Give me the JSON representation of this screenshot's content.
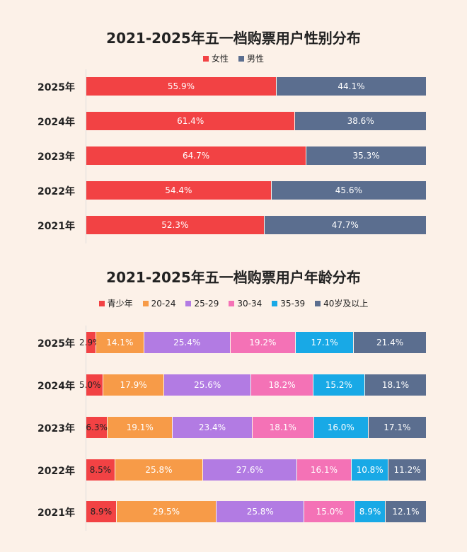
{
  "chart_data": [
    {
      "type": "bar",
      "stacked": true,
      "orientation": "horizontal",
      "title": "2021-2025年五一档购票用户性别分布",
      "categories": [
        "2025年",
        "2024年",
        "2023年",
        "2022年",
        "2021年"
      ],
      "legend_position": "top",
      "series": [
        {
          "name": "女性",
          "color": "#f24244",
          "values": [
            55.9,
            61.4,
            64.7,
            54.4,
            52.3
          ]
        },
        {
          "name": "男性",
          "color": "#5b6e8f",
          "values": [
            44.1,
            38.6,
            35.3,
            45.6,
            47.7
          ]
        }
      ]
    },
    {
      "type": "bar",
      "stacked": true,
      "orientation": "horizontal",
      "title": "2021-2025年五一档购票用户年龄分布",
      "categories": [
        "2025年",
        "2024年",
        "2023年",
        "2022年",
        "2021年"
      ],
      "legend_position": "top",
      "series": [
        {
          "name": "青少年",
          "color": "#f24244",
          "values": [
            2.9,
            5.0,
            6.3,
            8.5,
            8.9
          ]
        },
        {
          "name": "20-24",
          "color": "#f79b48",
          "values": [
            14.1,
            17.9,
            19.1,
            25.8,
            29.5
          ]
        },
        {
          "name": "25-29",
          "color": "#b27be3",
          "values": [
            25.4,
            25.6,
            23.4,
            27.6,
            25.8
          ]
        },
        {
          "name": "30-34",
          "color": "#f472b6",
          "values": [
            19.2,
            18.2,
            18.1,
            16.1,
            15.0
          ]
        },
        {
          "name": "35-39",
          "color": "#18a9e6",
          "values": [
            17.1,
            15.2,
            16.0,
            10.8,
            8.9
          ]
        },
        {
          "name": "40岁及以上",
          "color": "#5b6e8f",
          "values": [
            21.4,
            18.1,
            17.1,
            11.2,
            12.1
          ]
        }
      ]
    }
  ]
}
